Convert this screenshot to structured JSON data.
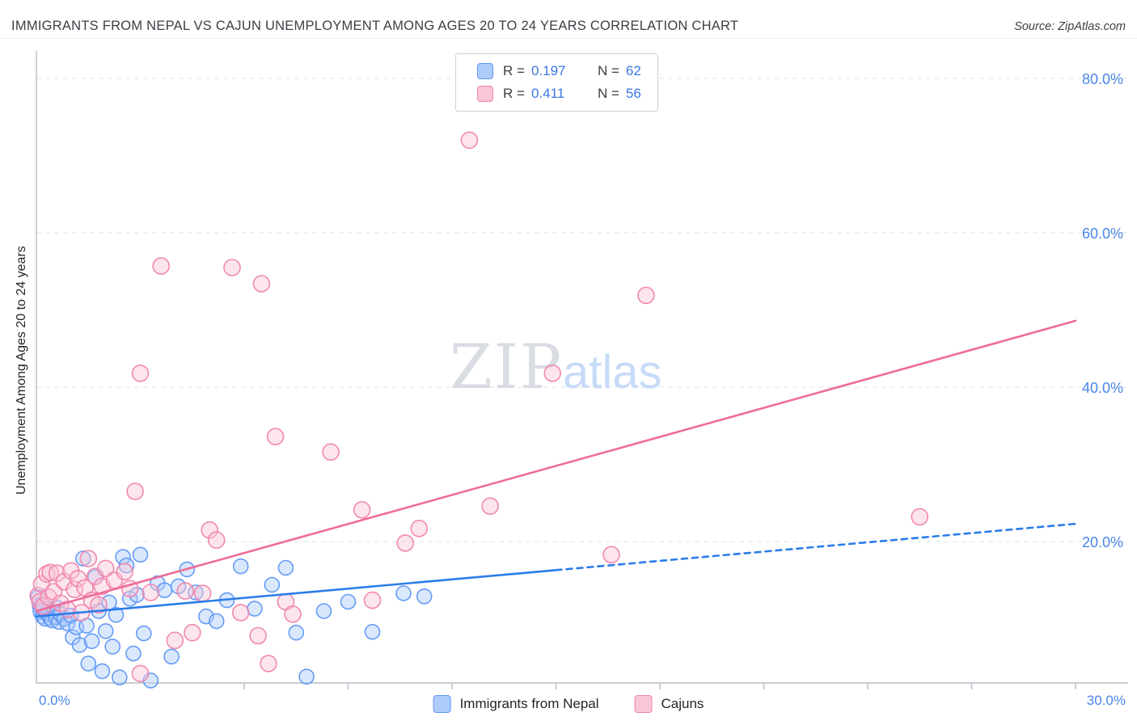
{
  "header": {
    "source": "Source: ZipAtlas.com"
  },
  "legend_box": {
    "rows": [
      {
        "r_label": "R =",
        "r_value": "0.197",
        "n_label": "N =",
        "n_value": "62",
        "series": "Immigrants from Nepal"
      },
      {
        "r_label": "R =",
        "r_value": "0.411",
        "n_label": "N =",
        "n_value": "56",
        "series": "Cajuns"
      }
    ]
  },
  "watermark": {
    "part1": "ZIP",
    "part2": "atlas"
  },
  "colors": {
    "accent_blue": "#3b78e7",
    "tick_label_blue": "#4a86e8",
    "grid": "#dfe3e8",
    "axis": "#b7bdc5",
    "watermark_zip": "#d9dde3",
    "watermark_atlas": "#c7dbf8",
    "title_text": "#3a3f45"
  },
  "chart_data": {
    "type": "scatter",
    "title": "IMMIGRANTS FROM NEPAL VS CAJUN UNEMPLOYMENT AMONG AGES 20 TO 24 YEARS CORRELATION CHART",
    "ylabel": "Unemployment Among Ages 20 to 24 years",
    "xlim": [
      0,
      30
    ],
    "ylim": [
      0,
      84
    ],
    "grid": "horizontal-dashed",
    "legend_position": "top-center",
    "x_ticks": [
      {
        "value": 0,
        "label": "0.0%"
      },
      {
        "value": 30,
        "label": "30.0%"
      }
    ],
    "x_minor_ticks": [
      6,
      9,
      12,
      15,
      18,
      21,
      24,
      27,
      30
    ],
    "y_ticks": [
      {
        "value": 80,
        "label": "80.0%"
      },
      {
        "value": 60,
        "label": "60.0%"
      },
      {
        "value": 40,
        "label": "40.0%"
      },
      {
        "value": 20,
        "label": "20.0%"
      }
    ],
    "series": [
      {
        "name": "Immigrants from Nepal",
        "R": 0.197,
        "N": 62,
        "fill": "#aecbfa",
        "stroke": "#5e97f6",
        "marker_radius": 9,
        "points": [
          [
            0.05,
            12.8
          ],
          [
            0.1,
            11.6
          ],
          [
            0.12,
            10.9
          ],
          [
            0.15,
            11.9
          ],
          [
            0.18,
            10.3
          ],
          [
            0.2,
            11.1
          ],
          [
            0.25,
            10.0
          ],
          [
            0.3,
            10.7
          ],
          [
            0.35,
            11.3
          ],
          [
            0.4,
            10.1
          ],
          [
            0.45,
            9.8
          ],
          [
            0.5,
            10.9
          ],
          [
            0.55,
            10.2
          ],
          [
            0.6,
            11.4
          ],
          [
            0.65,
            9.6
          ],
          [
            0.7,
            10.6
          ],
          [
            0.8,
            10.0
          ],
          [
            0.9,
            9.4
          ],
          [
            1.0,
            10.4
          ],
          [
            1.05,
            7.6
          ],
          [
            1.15,
            8.9
          ],
          [
            1.25,
            6.6
          ],
          [
            1.35,
            17.8
          ],
          [
            1.45,
            9.1
          ],
          [
            1.5,
            4.2
          ],
          [
            1.6,
            7.1
          ],
          [
            1.7,
            15.4
          ],
          [
            1.8,
            11.0
          ],
          [
            1.9,
            3.2
          ],
          [
            2.0,
            8.4
          ],
          [
            2.1,
            12.1
          ],
          [
            2.2,
            6.4
          ],
          [
            2.3,
            10.5
          ],
          [
            2.4,
            2.4
          ],
          [
            2.5,
            18.0
          ],
          [
            2.6,
            16.9
          ],
          [
            2.7,
            12.6
          ],
          [
            2.8,
            5.5
          ],
          [
            2.9,
            13.1
          ],
          [
            3.0,
            18.3
          ],
          [
            3.1,
            8.1
          ],
          [
            3.3,
            2.0
          ],
          [
            3.5,
            14.6
          ],
          [
            3.7,
            13.7
          ],
          [
            3.9,
            5.1
          ],
          [
            4.1,
            14.2
          ],
          [
            4.35,
            16.4
          ],
          [
            4.6,
            13.4
          ],
          [
            4.9,
            10.3
          ],
          [
            5.2,
            9.7
          ],
          [
            5.5,
            12.4
          ],
          [
            5.9,
            16.8
          ],
          [
            6.3,
            11.3
          ],
          [
            6.8,
            14.4
          ],
          [
            7.2,
            16.6
          ],
          [
            7.5,
            8.2
          ],
          [
            7.8,
            2.5
          ],
          [
            8.3,
            11.0
          ],
          [
            9.0,
            12.2
          ],
          [
            9.7,
            8.3
          ],
          [
            10.6,
            13.3
          ],
          [
            11.2,
            12.9
          ]
        ]
      },
      {
        "name": "Cajuns",
        "R": 0.411,
        "N": 56,
        "fill": "#f9c6d8",
        "stroke": "#f083ab",
        "marker_radius": 10,
        "points": [
          [
            0.05,
            13.0
          ],
          [
            0.1,
            12.2
          ],
          [
            0.15,
            14.5
          ],
          [
            0.2,
            11.6
          ],
          [
            0.3,
            15.8
          ],
          [
            0.35,
            12.8
          ],
          [
            0.4,
            16.0
          ],
          [
            0.5,
            13.5
          ],
          [
            0.6,
            15.9
          ],
          [
            0.7,
            12.0
          ],
          [
            0.8,
            14.8
          ],
          [
            0.9,
            11.2
          ],
          [
            1.0,
            16.2
          ],
          [
            1.1,
            13.8
          ],
          [
            1.2,
            15.2
          ],
          [
            1.3,
            10.8
          ],
          [
            1.4,
            14.0
          ],
          [
            1.5,
            17.8
          ],
          [
            1.6,
            12.4
          ],
          [
            1.7,
            15.5
          ],
          [
            1.8,
            11.8
          ],
          [
            1.9,
            14.2
          ],
          [
            2.0,
            16.5
          ],
          [
            2.25,
            15.0
          ],
          [
            2.55,
            16.1
          ],
          [
            2.7,
            13.9
          ],
          [
            2.85,
            26.5
          ],
          [
            3.0,
            2.9
          ],
          [
            3.0,
            41.8
          ],
          [
            3.3,
            13.4
          ],
          [
            3.6,
            55.7
          ],
          [
            4.0,
            7.2
          ],
          [
            4.3,
            13.6
          ],
          [
            4.5,
            8.2
          ],
          [
            4.8,
            13.3
          ],
          [
            5.0,
            21.5
          ],
          [
            5.2,
            20.2
          ],
          [
            5.65,
            55.5
          ],
          [
            5.9,
            10.8
          ],
          [
            6.4,
            7.8
          ],
          [
            6.5,
            53.4
          ],
          [
            6.7,
            4.2
          ],
          [
            6.9,
            33.6
          ],
          [
            7.2,
            12.2
          ],
          [
            7.4,
            10.6
          ],
          [
            8.5,
            31.6
          ],
          [
            9.4,
            24.1
          ],
          [
            9.7,
            12.4
          ],
          [
            10.65,
            19.8
          ],
          [
            11.05,
            21.7
          ],
          [
            12.5,
            72.0
          ],
          [
            13.1,
            24.6
          ],
          [
            14.9,
            41.8
          ],
          [
            16.6,
            18.3
          ],
          [
            17.6,
            51.9
          ],
          [
            25.5,
            23.2
          ]
        ]
      }
    ],
    "trend_lines": [
      {
        "series": "Immigrants from Nepal",
        "color": "#2b7de9",
        "start": [
          0,
          10.3
        ],
        "end": [
          30,
          22.3
        ],
        "solid_until": 15
      },
      {
        "series": "Cajuns",
        "color": "#ee6c99",
        "start": [
          0,
          11.0
        ],
        "end": [
          30,
          48.6
        ]
      }
    ]
  }
}
